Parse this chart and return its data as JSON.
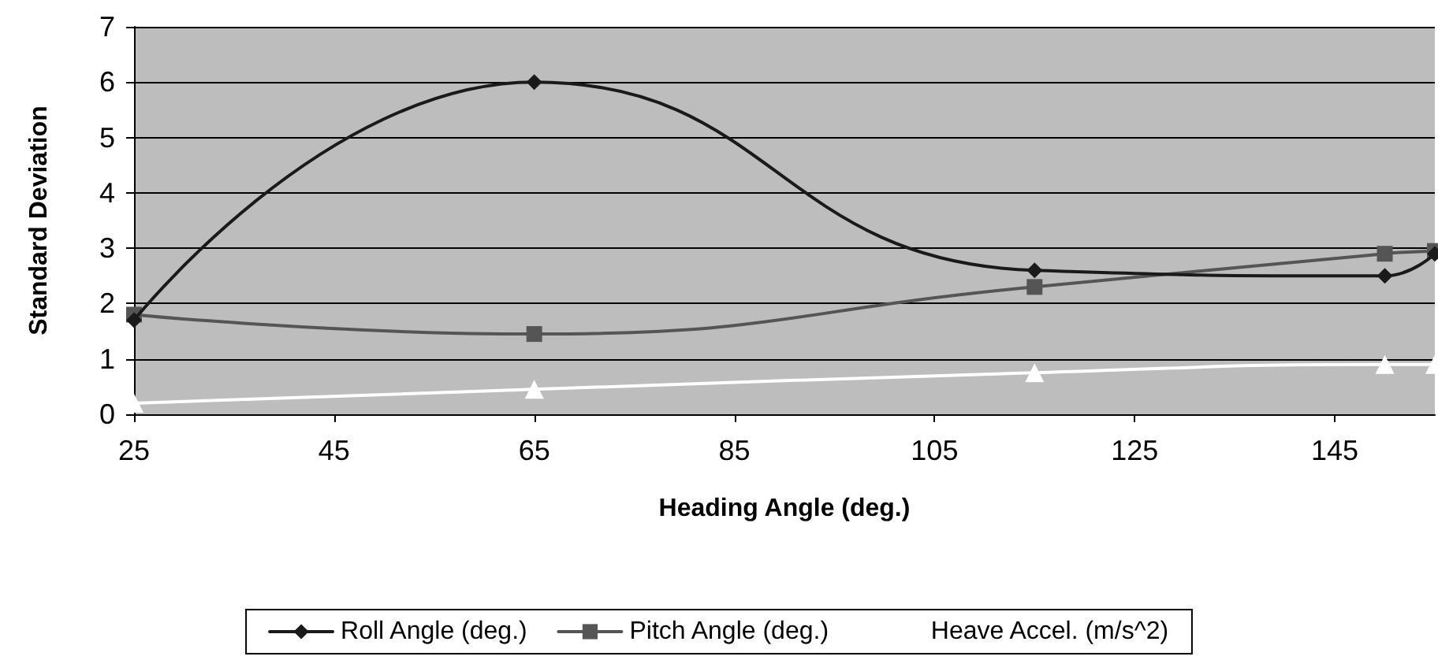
{
  "chart_data": {
    "type": "line",
    "xlabel": "Heading Angle (deg.)",
    "ylabel": "Standard Deviation",
    "x": [
      25,
      65,
      115,
      150,
      155
    ],
    "series": [
      {
        "name": "Roll Angle (deg.)",
        "color": "#1a1a1a",
        "marker": "diamond",
        "values": [
          1.7,
          6.0,
          2.6,
          2.5,
          2.9
        ]
      },
      {
        "name": "Pitch Angle (deg.)",
        "color": "#555555",
        "marker": "square",
        "values": [
          1.8,
          1.45,
          2.3,
          2.9,
          2.95
        ]
      },
      {
        "name": "Heave Accel. (m/s^2)",
        "color": "#ffffff",
        "marker": "triangle",
        "values": [
          0.2,
          0.45,
          0.75,
          0.9,
          0.9
        ]
      }
    ],
    "xlim": [
      25,
      155
    ],
    "xticks": [
      25,
      45,
      65,
      85,
      105,
      125,
      145
    ],
    "ylim": [
      0,
      7
    ],
    "yticks": [
      0,
      1,
      2,
      3,
      4,
      5,
      6,
      7
    ],
    "grid": "y",
    "legend": "bottom"
  }
}
